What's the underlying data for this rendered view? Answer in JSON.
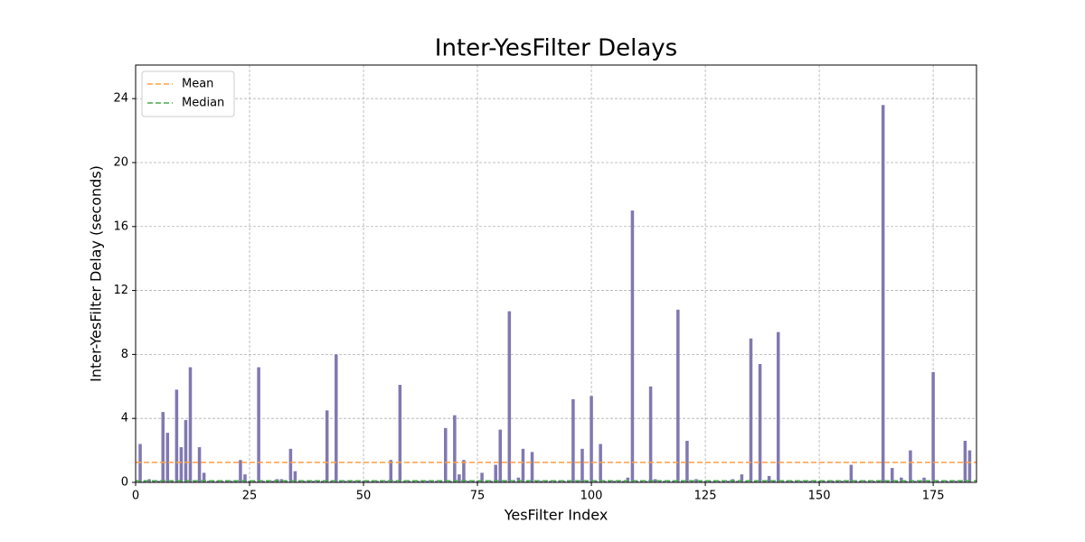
{
  "chart_data": {
    "type": "bar",
    "title": "Inter-YesFilter Delays",
    "x_label": "YesFilter Index",
    "y_label": "Inter-YesFilter Delay (seconds)",
    "color": "#8179b0",
    "grid": true,
    "legend": "upper left",
    "xlim": [
      0,
      184.5
    ],
    "xticks": [
      0,
      25,
      50,
      75,
      100,
      125,
      150,
      175
    ],
    "ylim": [
      0,
      26.1
    ],
    "yticks": [
      0,
      4,
      8,
      12,
      16,
      20,
      24
    ],
    "x": [
      1,
      2,
      3,
      4,
      5,
      6,
      7,
      8,
      9,
      10,
      11,
      12,
      13,
      14,
      15,
      16,
      17,
      18,
      19,
      20,
      21,
      22,
      23,
      24,
      25,
      26,
      27,
      28,
      29,
      30,
      31,
      32,
      33,
      34,
      35,
      36,
      37,
      38,
      39,
      40,
      41,
      42,
      43,
      44,
      45,
      46,
      47,
      48,
      49,
      50,
      51,
      52,
      53,
      54,
      55,
      56,
      57,
      58,
      59,
      60,
      61,
      62,
      63,
      64,
      65,
      66,
      67,
      68,
      69,
      70,
      71,
      72,
      73,
      74,
      75,
      76,
      77,
      78,
      79,
      80,
      81,
      82,
      83,
      84,
      85,
      86,
      87,
      88,
      89,
      90,
      91,
      92,
      93,
      94,
      95,
      96,
      97,
      98,
      99,
      100,
      101,
      102,
      103,
      104,
      105,
      106,
      107,
      108,
      109,
      110,
      111,
      112,
      113,
      114,
      115,
      116,
      117,
      118,
      119,
      120,
      121,
      122,
      123,
      124,
      125,
      126,
      127,
      128,
      129,
      130,
      131,
      132,
      133,
      134,
      135,
      136,
      137,
      138,
      139,
      140,
      141,
      142,
      143,
      144,
      145,
      146,
      147,
      148,
      149,
      150,
      151,
      152,
      153,
      154,
      155,
      156,
      157,
      158,
      159,
      160,
      161,
      162,
      163,
      164,
      165,
      166,
      167,
      168,
      169,
      170,
      171,
      172,
      173,
      174,
      175,
      176,
      177,
      178,
      179,
      180,
      181,
      182,
      183
    ],
    "values": [
      2.4,
      0.1,
      0.2,
      0.1,
      0.1,
      4.4,
      3.1,
      0.1,
      5.8,
      2.2,
      3.9,
      7.2,
      0.1,
      2.2,
      0.6,
      0.1,
      0.1,
      0.1,
      0.1,
      0.1,
      0.1,
      0.1,
      1.4,
      0.5,
      0.1,
      0.1,
      7.2,
      0.1,
      0.1,
      0.1,
      0.2,
      0.2,
      0.1,
      2.1,
      0.7,
      0.1,
      0.1,
      0.1,
      0.1,
      0.1,
      0.1,
      4.5,
      0.1,
      8.0,
      0.1,
      0.1,
      0.1,
      0.1,
      0.1,
      0.1,
      0.1,
      0.1,
      0.1,
      0.1,
      0.1,
      1.4,
      0.1,
      6.1,
      0.1,
      0.1,
      0.1,
      0.1,
      0.1,
      0.1,
      0.1,
      0.1,
      0.1,
      3.4,
      0.1,
      4.2,
      0.5,
      1.4,
      0.1,
      0.1,
      0.1,
      0.6,
      0.1,
      0.1,
      1.1,
      3.3,
      0.1,
      10.7,
      0.1,
      0.3,
      2.1,
      0.1,
      1.9,
      0.1,
      0.1,
      0.1,
      0.1,
      0.1,
      0.1,
      0.1,
      0.1,
      5.2,
      0.1,
      2.1,
      0.1,
      5.4,
      0.1,
      2.4,
      0.1,
      0.1,
      0.1,
      0.1,
      0.1,
      0.3,
      17.0,
      0.1,
      0.1,
      0.1,
      6.0,
      0.2,
      0.1,
      0.1,
      0.1,
      0.1,
      10.8,
      0.1,
      2.6,
      0.1,
      0.2,
      0.1,
      0.1,
      0.1,
      0.1,
      0.1,
      0.1,
      0.1,
      0.2,
      0.1,
      0.5,
      0.1,
      9.0,
      0.1,
      7.4,
      0.1,
      0.4,
      0.1,
      9.4,
      0.1,
      0.1,
      0.1,
      0.1,
      0.1,
      0.1,
      0.1,
      0.1,
      0.1,
      0.1,
      0.1,
      0.1,
      0.1,
      0.1,
      0.1,
      1.1,
      0.1,
      0.1,
      0.1,
      0.1,
      0.1,
      0.1,
      23.6,
      0.1,
      0.9,
      0.1,
      0.3,
      0.1,
      2.0,
      0.1,
      0.1,
      0.3,
      0.1,
      6.9,
      0.1,
      0.1,
      0.1,
      0.1,
      0.1,
      0.1,
      2.6,
      2.0
    ],
    "lines": [
      {
        "name": "Mean",
        "value": 1.25,
        "color": "#ff9f40"
      },
      {
        "name": "Median",
        "value": 0.1,
        "color": "#4aa84a"
      }
    ]
  }
}
